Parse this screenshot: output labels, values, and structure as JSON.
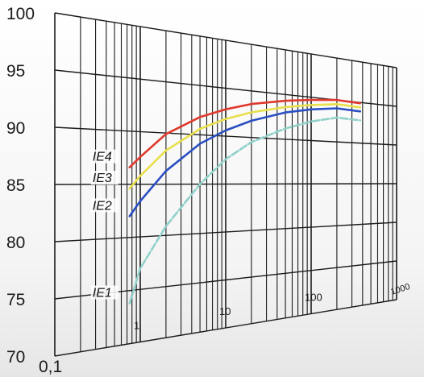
{
  "chart_data": {
    "type": "line",
    "title": "",
    "xlabel": "",
    "ylabel": "",
    "x_scale": "log",
    "xlim": [
      0.1,
      1000
    ],
    "ylim": [
      70,
      100
    ],
    "grid": true,
    "x_ticks": [
      "0,1",
      "1",
      "10",
      "100",
      "1000"
    ],
    "y_ticks": [
      "70",
      "75",
      "80",
      "85",
      "90",
      "95",
      "100"
    ],
    "series": [
      {
        "name": "IE4",
        "color": "#e0392d",
        "x": [
          0.75,
          1,
          2,
          5,
          10,
          20,
          50,
          100,
          200,
          375
        ],
        "y": [
          86.6,
          87.6,
          89.9,
          91.8,
          92.8,
          93.6,
          94.3,
          94.7,
          95.0,
          94.9
        ]
      },
      {
        "name": "IE3",
        "color": "#e8df4a",
        "x": [
          0.75,
          1,
          2,
          5,
          10,
          20,
          50,
          100,
          200,
          375
        ],
        "y": [
          84.6,
          85.8,
          88.3,
          90.6,
          91.8,
          92.7,
          93.6,
          94.1,
          94.5,
          94.4
        ]
      },
      {
        "name": "IE2",
        "color": "#2b4fc1",
        "x": [
          0.75,
          1,
          2,
          5,
          10,
          20,
          50,
          100,
          200,
          375
        ],
        "y": [
          82.0,
          83.4,
          86.3,
          89.1,
          90.6,
          91.8,
          93.0,
          93.6,
          94.0,
          93.9
        ]
      },
      {
        "name": "IE1",
        "color": "#8fd1c9",
        "dashed": true,
        "x": [
          0.75,
          1,
          2,
          5,
          10,
          20,
          50,
          100,
          200,
          375
        ],
        "y": [
          73.8,
          77.0,
          80.9,
          85.0,
          87.6,
          89.5,
          91.2,
          92.2,
          92.9,
          92.8
        ]
      }
    ]
  }
}
